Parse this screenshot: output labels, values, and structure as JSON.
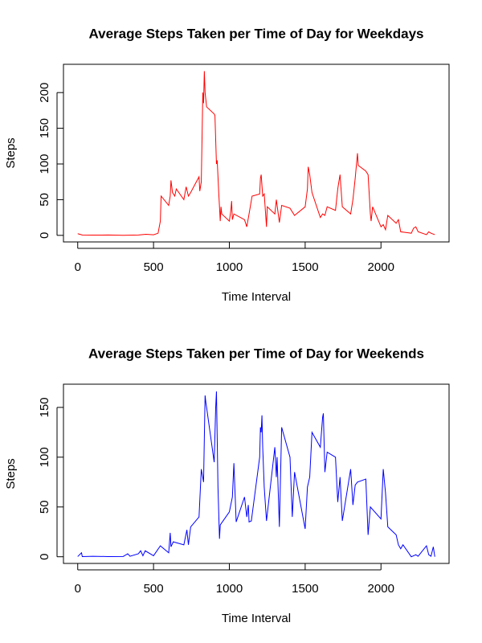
{
  "chart_data": [
    {
      "type": "line",
      "title": "Average Steps Taken per Time of Day for Weekdays",
      "xlabel": "Time Interval",
      "ylabel": "Steps",
      "color": "#ff0000",
      "x": [
        0,
        30,
        100,
        200,
        300,
        400,
        450,
        500,
        530,
        545,
        550,
        600,
        610,
        615,
        625,
        640,
        650,
        700,
        715,
        730,
        745,
        800,
        805,
        815,
        825,
        830,
        835,
        840,
        845,
        850,
        900,
        905,
        915,
        920,
        930,
        940,
        945,
        950,
        1000,
        1010,
        1015,
        1020,
        1030,
        1100,
        1115,
        1130,
        1150,
        1200,
        1205,
        1210,
        1220,
        1230,
        1245,
        1250,
        1300,
        1310,
        1330,
        1345,
        1400,
        1430,
        1500,
        1515,
        1520,
        1530,
        1545,
        1600,
        1615,
        1630,
        1645,
        1700,
        1715,
        1720,
        1730,
        1745,
        1800,
        1815,
        1830,
        1845,
        1850,
        1900,
        1915,
        1930,
        1935,
        1945,
        2000,
        2015,
        2030,
        2045,
        2100,
        2115,
        2130,
        2200,
        2215,
        2230,
        2245,
        2300,
        2315,
        2330,
        2355
      ],
      "values": [
        2.3,
        0.5,
        0.3,
        0.5,
        0.1,
        0.5,
        1.5,
        0.8,
        3,
        20,
        55,
        42,
        55,
        77,
        60,
        55,
        65,
        50,
        68,
        55,
        60,
        82,
        62,
        75,
        200,
        185,
        230,
        200,
        190,
        180,
        170,
        168,
        100,
        105,
        60,
        20,
        40,
        30,
        20,
        35,
        48,
        22,
        30,
        22,
        12,
        30,
        55,
        58,
        80,
        85,
        55,
        58,
        12,
        40,
        30,
        50,
        18,
        42,
        38,
        28,
        40,
        65,
        96,
        85,
        60,
        25,
        30,
        28,
        40,
        35,
        65,
        72,
        85,
        40,
        30,
        50,
        80,
        115,
        98,
        90,
        85,
        30,
        20,
        40,
        12,
        15,
        8,
        28,
        17,
        22,
        5,
        3,
        10,
        12,
        5,
        1,
        5,
        3,
        1
      ],
      "xlim": [
        -94,
        2449
      ],
      "ylim": [
        -9.2,
        239.6
      ],
      "xticks": [
        0,
        500,
        1000,
        1500,
        2000
      ],
      "yticks": [
        0,
        50,
        100,
        150,
        200
      ]
    },
    {
      "type": "line",
      "title": "Average Steps Taken per Time of Day for Weekends",
      "xlabel": "Time Interval",
      "ylabel": "Steps",
      "color": "#0000ff",
      "x": [
        0,
        25,
        30,
        100,
        200,
        300,
        330,
        345,
        400,
        415,
        430,
        445,
        500,
        545,
        600,
        610,
        615,
        630,
        700,
        720,
        730,
        745,
        800,
        815,
        830,
        840,
        845,
        850,
        900,
        910,
        915,
        925,
        935,
        940,
        1000,
        1020,
        1030,
        1045,
        1100,
        1115,
        1125,
        1130,
        1145,
        1200,
        1205,
        1210,
        1215,
        1220,
        1230,
        1245,
        1300,
        1310,
        1315,
        1330,
        1345,
        1400,
        1415,
        1430,
        1500,
        1515,
        1530,
        1545,
        1600,
        1615,
        1620,
        1630,
        1645,
        1700,
        1715,
        1730,
        1745,
        1800,
        1815,
        1830,
        1845,
        1900,
        1915,
        1930,
        2000,
        2015,
        2030,
        2045,
        2100,
        2115,
        2130,
        2145,
        2200,
        2230,
        2245,
        2300,
        2315,
        2330,
        2345,
        2355
      ],
      "values": [
        0.2,
        4,
        0.2,
        0.5,
        0.2,
        0.3,
        3,
        0.5,
        3,
        6,
        1,
        6,
        1,
        11,
        4,
        24,
        10,
        15,
        12,
        27,
        12,
        30,
        40,
        88,
        75,
        162,
        155,
        150,
        95,
        150,
        166,
        70,
        18,
        32,
        45,
        60,
        94,
        35,
        60,
        40,
        52,
        35,
        36,
        100,
        130,
        125,
        142,
        110,
        70,
        36,
        110,
        80,
        100,
        30,
        130,
        100,
        40,
        85,
        28,
        70,
        80,
        125,
        110,
        140,
        144,
        85,
        105,
        100,
        55,
        80,
        36,
        88,
        52,
        72,
        75,
        78,
        22,
        50,
        38,
        88,
        64,
        30,
        22,
        12,
        8,
        12,
        0,
        2,
        0.5,
        11,
        2,
        0.5,
        10,
        0
      ],
      "xlim": [
        -94,
        2449
      ],
      "ylim": [
        -6.7,
        173.3
      ],
      "xticks": [
        0,
        500,
        1000,
        1500,
        2000
      ],
      "yticks": [
        0,
        50,
        100,
        150
      ]
    }
  ]
}
